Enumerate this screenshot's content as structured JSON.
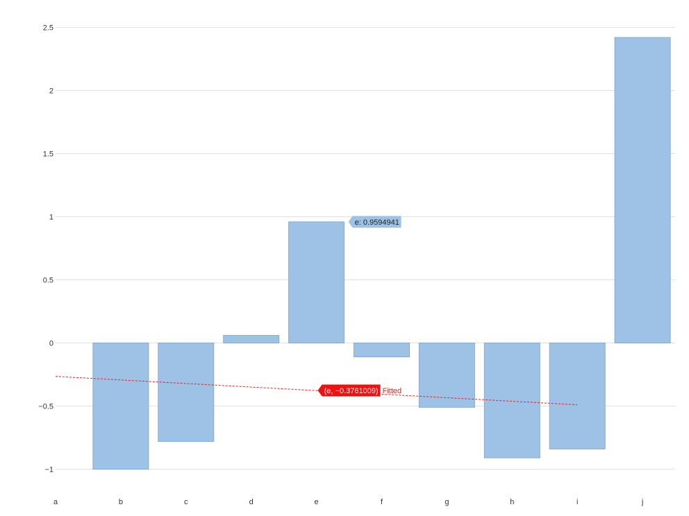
{
  "chart_data": {
    "type": "bar",
    "categories": [
      "a",
      "b",
      "c",
      "d",
      "e",
      "f",
      "g",
      "h",
      "i",
      "j"
    ],
    "series": [
      {
        "values": [
          null,
          -1.0,
          -0.78,
          0.06,
          0.9594941,
          -0.11,
          -0.51,
          -0.91,
          -0.84,
          2.42
        ],
        "color": "#9dc2e5"
      }
    ],
    "fitted": {
      "name": "Fitted",
      "start": {
        "x": "a",
        "y": -0.265
      },
      "end": {
        "x": "i",
        "y": -0.49
      },
      "color": "#e8211c",
      "style": "dashed"
    },
    "y_ticks": [
      "2.5",
      "2",
      "1.5",
      "1",
      "0.5",
      "0",
      "−0.5",
      "−1"
    ],
    "y_tick_values": [
      2.5,
      2,
      1.5,
      1,
      0.5,
      0,
      -0.5,
      -1
    ],
    "ylim": [
      -1,
      2.5
    ],
    "grid": true,
    "tooltips": {
      "bar": {
        "text": "e: 0.9594941",
        "category": "e",
        "value": 0.9594941
      },
      "fitted": {
        "text": "(e, −0.3761009)",
        "label": "Fitted",
        "category": "e",
        "value": -0.3761009
      }
    },
    "title": "",
    "xlabel": "",
    "ylabel": ""
  }
}
